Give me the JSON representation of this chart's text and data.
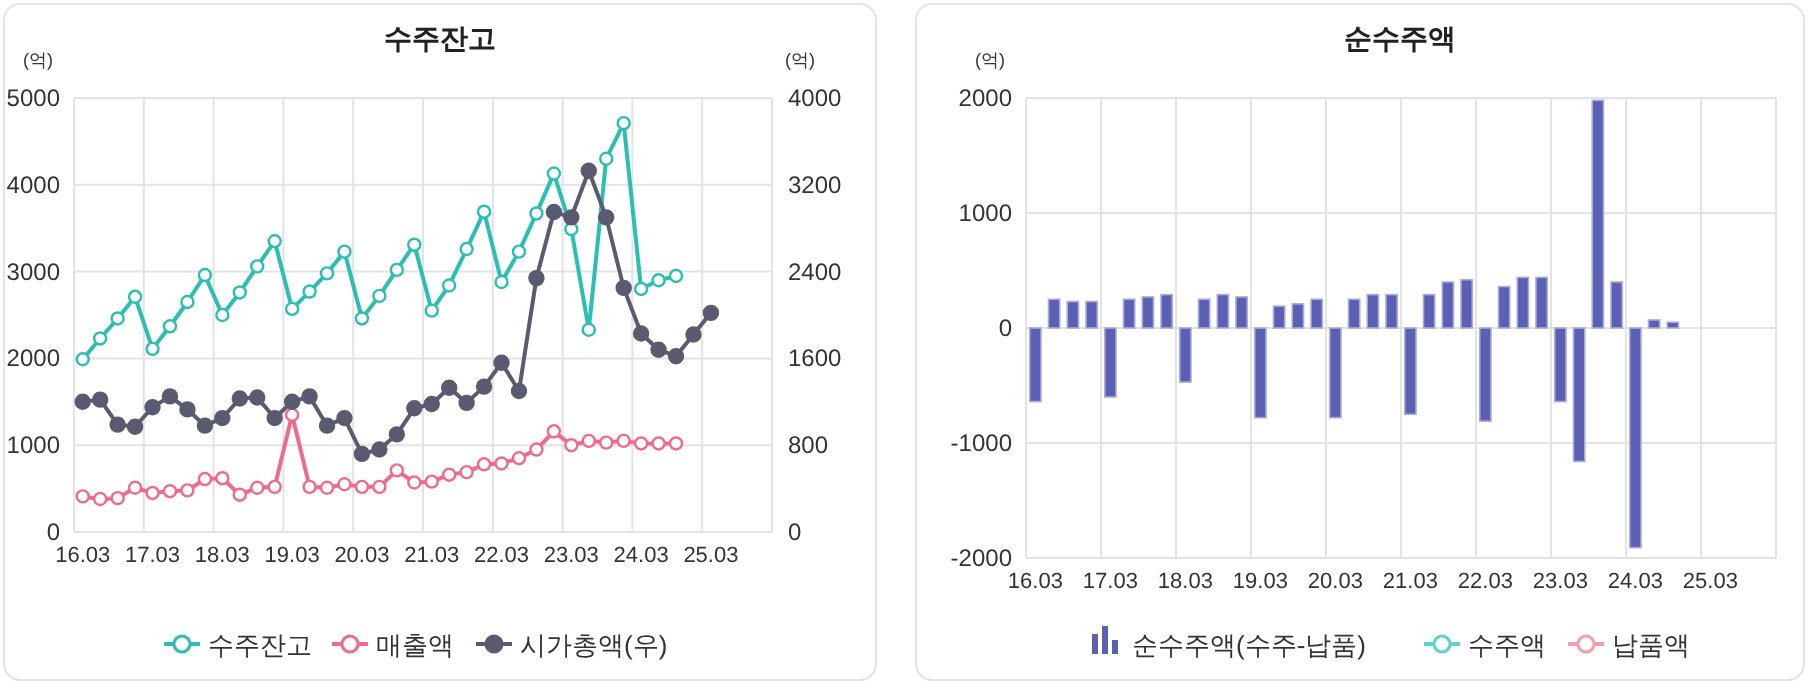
{
  "chart_data": [
    {
      "type": "line",
      "title": "수주잔고",
      "ylabel": "(억)",
      "y2label": "(억)",
      "categories": [
        "16.03",
        null,
        null,
        null,
        "17.03",
        null,
        null,
        null,
        "18.03",
        null,
        null,
        null,
        "19.03",
        null,
        null,
        null,
        "20.03",
        null,
        null,
        null,
        "21.03",
        null,
        null,
        null,
        "22.03",
        null,
        null,
        null,
        "23.03",
        null,
        null,
        null,
        "24.03",
        null,
        null,
        null,
        "25.03",
        null,
        null,
        null
      ],
      "ylim": [
        0,
        5000
      ],
      "yticks": [
        0,
        1000,
        2000,
        3000,
        4000,
        5000
      ],
      "y2lim": [
        0,
        4000
      ],
      "y2ticks": [
        0,
        800,
        1600,
        2400,
        3200,
        4000
      ],
      "grid": true,
      "legend": "bottom",
      "marker": "circle",
      "series": [
        {
          "name": "수주잔고",
          "color": "#2bbfb3",
          "values": [
            1990,
            2230,
            2460,
            2710,
            2110,
            2370,
            2650,
            2960,
            2500,
            2760,
            3060,
            3350,
            2570,
            2770,
            2980,
            3230,
            2460,
            2720,
            3020,
            3310,
            2550,
            2840,
            3260,
            3690,
            2880,
            3230,
            3670,
            4130,
            3490,
            2330,
            4300,
            4710,
            2800,
            2900,
            2950,
            null,
            null,
            null,
            null,
            null
          ]
        },
        {
          "name": "매출액",
          "color": "#f06a8a",
          "values": [
            410,
            380,
            390,
            510,
            450,
            470,
            480,
            610,
            620,
            430,
            510,
            520,
            1350,
            520,
            510,
            550,
            520,
            520,
            710,
            570,
            580,
            660,
            690,
            780,
            790,
            850,
            950,
            1160,
            1000,
            1050,
            1030,
            1050,
            1020,
            1020,
            1020,
            null,
            null,
            null,
            null,
            null
          ]
        },
        {
          "name": "시가총액(우)",
          "color": "#5a5a70",
          "axis": "y2",
          "values": [
            1200,
            1220,
            990,
            970,
            1150,
            1250,
            1130,
            980,
            1050,
            1230,
            1240,
            1050,
            1200,
            1250,
            980,
            1050,
            720,
            760,
            900,
            1140,
            1180,
            1330,
            1190,
            1340,
            1560,
            1300,
            2340,
            2950,
            2900,
            3330,
            2900,
            2250,
            1830,
            1680,
            1620,
            1820,
            2020,
            null,
            null,
            null
          ]
        }
      ]
    },
    {
      "type": "bar",
      "title": "순수주액",
      "ylabel": "(억)",
      "categories": [
        "16.03",
        null,
        null,
        null,
        "17.03",
        null,
        null,
        null,
        "18.03",
        null,
        null,
        null,
        "19.03",
        null,
        null,
        null,
        "20.03",
        null,
        null,
        null,
        "21.03",
        null,
        null,
        null,
        "22.03",
        null,
        null,
        null,
        "23.03",
        null,
        null,
        null,
        "24.03",
        null,
        null,
        null,
        "25.03",
        null,
        null,
        null
      ],
      "ylim": [
        -2000,
        2000
      ],
      "yticks": [
        -2000,
        -1000,
        0,
        1000,
        2000
      ],
      "grid": true,
      "legend": "bottom",
      "series": [
        {
          "name": "순수주액(수주-납품)",
          "color": "#5c60b4",
          "values": [
            -640,
            250,
            230,
            230,
            -600,
            250,
            270,
            290,
            -470,
            250,
            290,
            270,
            -780,
            190,
            210,
            250,
            -780,
            250,
            290,
            290,
            -750,
            290,
            400,
            420,
            -810,
            360,
            440,
            440,
            -640,
            -1160,
            1980,
            400,
            -1910,
            70,
            50,
            null,
            null,
            null,
            null,
            null
          ]
        },
        {
          "name": "수주액",
          "type": "line",
          "color": "#5fd3c9",
          "values": [
            null,
            null,
            null,
            null,
            null,
            null,
            null,
            null,
            null,
            null,
            null,
            null,
            null,
            null,
            null,
            null,
            null,
            null,
            null,
            null,
            null,
            null,
            null,
            null,
            null,
            null,
            null,
            null,
            null,
            null,
            null,
            null,
            null,
            null,
            null,
            null,
            null,
            null,
            null,
            null
          ]
        },
        {
          "name": "납품액",
          "type": "line",
          "color": "#f4a0ab",
          "values": [
            null,
            null,
            null,
            null,
            null,
            null,
            null,
            null,
            null,
            null,
            null,
            null,
            null,
            null,
            null,
            null,
            null,
            null,
            null,
            null,
            null,
            null,
            null,
            null,
            null,
            null,
            null,
            null,
            null,
            null,
            null,
            null,
            null,
            null,
            null,
            null,
            null,
            null,
            null,
            null
          ]
        }
      ]
    }
  ]
}
